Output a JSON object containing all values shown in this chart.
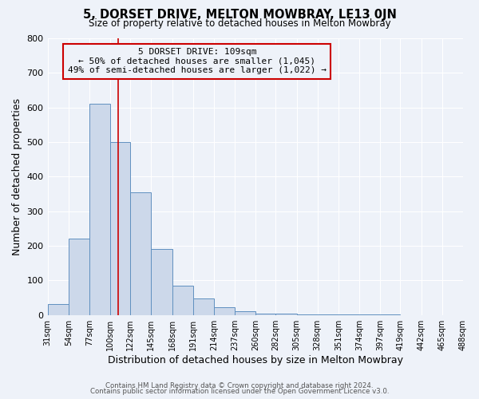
{
  "title": "5, DORSET DRIVE, MELTON MOWBRAY, LE13 0JN",
  "subtitle": "Size of property relative to detached houses in Melton Mowbray",
  "xlabel": "Distribution of detached houses by size in Melton Mowbray",
  "ylabel": "Number of detached properties",
  "bar_values": [
    32,
    220,
    610,
    500,
    355,
    190,
    85,
    48,
    22,
    12,
    5,
    3,
    2,
    1,
    1,
    1,
    1,
    0,
    0,
    0
  ],
  "bin_edges": [
    31,
    54,
    77,
    100,
    122,
    145,
    168,
    191,
    214,
    237,
    260,
    282,
    305,
    328,
    351,
    374,
    397,
    419,
    442,
    465,
    488
  ],
  "bin_labels": [
    "31sqm",
    "54sqm",
    "77sqm",
    "100sqm",
    "122sqm",
    "145sqm",
    "168sqm",
    "191sqm",
    "214sqm",
    "237sqm",
    "260sqm",
    "282sqm",
    "305sqm",
    "328sqm",
    "351sqm",
    "374sqm",
    "397sqm",
    "419sqm",
    "442sqm",
    "465sqm",
    "488sqm"
  ],
  "bar_facecolor": "#ccd8ea",
  "bar_edgecolor": "#6090c0",
  "vline_x": 109,
  "vline_color": "#cc0000",
  "annotation_title": "5 DORSET DRIVE: 109sqm",
  "annotation_line1": "← 50% of detached houses are smaller (1,045)",
  "annotation_line2": "49% of semi-detached houses are larger (1,022) →",
  "annotation_box_edgecolor": "#cc0000",
  "ylim": [
    0,
    800
  ],
  "yticks": [
    0,
    100,
    200,
    300,
    400,
    500,
    600,
    700,
    800
  ],
  "background_color": "#eef2f9",
  "grid_color": "#ffffff",
  "footer1": "Contains HM Land Registry data © Crown copyright and database right 2024.",
  "footer2": "Contains public sector information licensed under the Open Government Licence v3.0."
}
